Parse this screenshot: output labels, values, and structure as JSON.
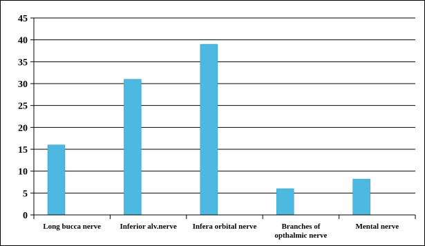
{
  "chart_data": {
    "type": "bar",
    "categories": [
      [
        "Long bucca nerve"
      ],
      [
        "Inferior alv.nerve"
      ],
      [
        "Infera orbital nerve"
      ],
      [
        "Branches of",
        "opthalmic nerve"
      ],
      [
        "Mental nerve"
      ]
    ],
    "values": [
      16,
      31,
      39,
      6,
      8.2
    ],
    "ylim": [
      0,
      45
    ],
    "yticks": [
      0,
      5,
      10,
      15,
      20,
      25,
      30,
      35,
      40,
      45
    ],
    "title": "",
    "xlabel": "",
    "ylabel": "",
    "grid": true,
    "legend": "none",
    "colors": {
      "bar": "#4db8e0",
      "bar_edge": "#2f9cc4",
      "grid": "#000000",
      "axis": "#000000"
    }
  }
}
